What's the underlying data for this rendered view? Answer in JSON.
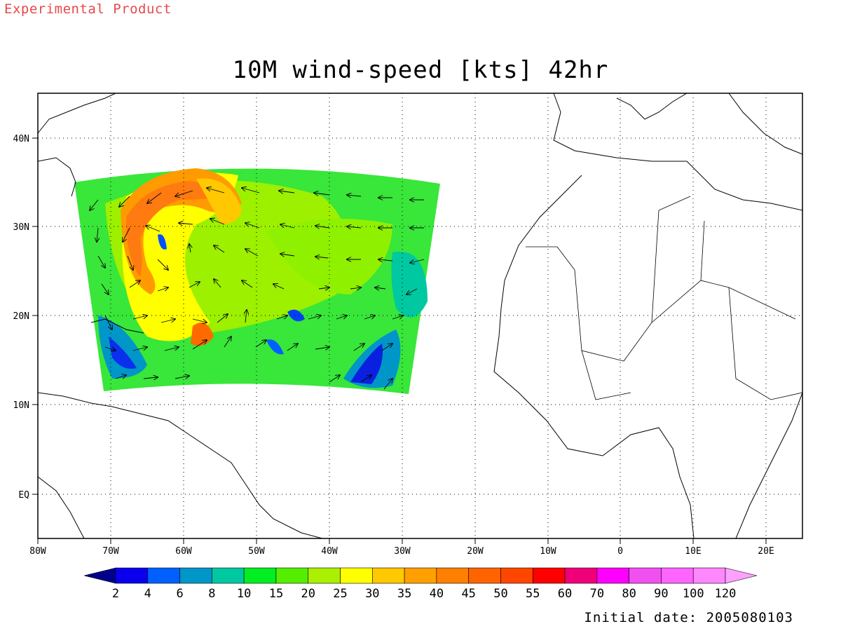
{
  "header": {
    "experimental": "Experimental Product",
    "title": "10M wind-speed [kts] 42hr"
  },
  "footer": {
    "initial_date": "Initial date: 2005080103"
  },
  "map": {
    "lon_labels": [
      "80W",
      "70W",
      "60W",
      "50W",
      "40W",
      "30W",
      "20W",
      "10W",
      "0",
      "10E",
      "20E"
    ],
    "lat_labels": [
      "40N",
      "30N",
      "20N",
      "10N",
      "EQ"
    ]
  },
  "colorbar": {
    "labels": [
      "2",
      "4",
      "6",
      "8",
      "10",
      "15",
      "20",
      "25",
      "30",
      "35",
      "40",
      "45",
      "50",
      "55",
      "60",
      "70",
      "80",
      "90",
      "100",
      "120"
    ],
    "colors": [
      "#0a00ee",
      "#0060ff",
      "#0096c8",
      "#00c8a0",
      "#00ee22",
      "#55ee00",
      "#aaf000",
      "#ffff00",
      "#ffc800",
      "#ffa000",
      "#ff8000",
      "#ff6400",
      "#ff4600",
      "#ff0000",
      "#f00078",
      "#ff00ff",
      "#f050f0",
      "#ff64ff",
      "#ff88ff"
    ],
    "low_color": "#00008c",
    "high_color": "#ffa0ff"
  }
}
